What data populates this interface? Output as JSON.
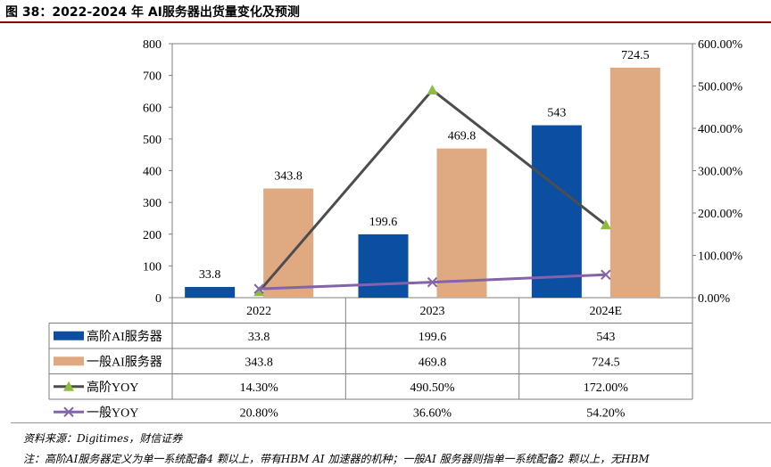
{
  "figure": {
    "title": "图 38：2022-2024 年 AI服务器出货量变化及预测",
    "source": "资料来源：Digitimes，财信证券",
    "note": "注：高阶AI服务器定义为单一系统配备4 颗以上，带有HBM AI 加速器的机种；一般AI 服务器则指单一系统配备2 颗以上，无HBM"
  },
  "chart_data": {
    "type": "bar",
    "categories": [
      "2022",
      "2023",
      "2024E"
    ],
    "series": [
      {
        "name": "高阶AI服务器",
        "kind": "bar",
        "axis": "left",
        "color": "#0b4ea2",
        "values": [
          33.8,
          199.6,
          543
        ],
        "labels": [
          "33.8",
          "199.6",
          "543"
        ]
      },
      {
        "name": "一般AI服务器",
        "kind": "bar",
        "axis": "left",
        "color": "#dfa982",
        "values": [
          343.8,
          469.8,
          724.5
        ],
        "labels": [
          "343.8",
          "469.8",
          "724.5"
        ]
      },
      {
        "name": "高阶YOY",
        "kind": "line",
        "axis": "right",
        "color": "#4d4d4d",
        "marker": "triangle",
        "marker_color": "#8fbc3f",
        "values": [
          14.3,
          490.5,
          172.0
        ],
        "labels": [
          "14.30%",
          "490.50%",
          "172.00%"
        ]
      },
      {
        "name": "一般YOY",
        "kind": "line",
        "axis": "right",
        "color": "#8464a8",
        "marker": "x",
        "values": [
          20.8,
          36.6,
          54.2
        ],
        "labels": [
          "20.80%",
          "36.60%",
          "54.20%"
        ]
      }
    ],
    "y_left": {
      "ylim": [
        0,
        800
      ],
      "ticks": [
        "0",
        "100",
        "200",
        "300",
        "400",
        "500",
        "600",
        "700",
        "800"
      ]
    },
    "y_right": {
      "ylim": [
        0,
        600
      ],
      "ticks": [
        "0.00%",
        "100.00%",
        "200.00%",
        "300.00%",
        "400.00%",
        "500.00%",
        "600.00%"
      ]
    },
    "legend": "data-table",
    "grid": false
  }
}
